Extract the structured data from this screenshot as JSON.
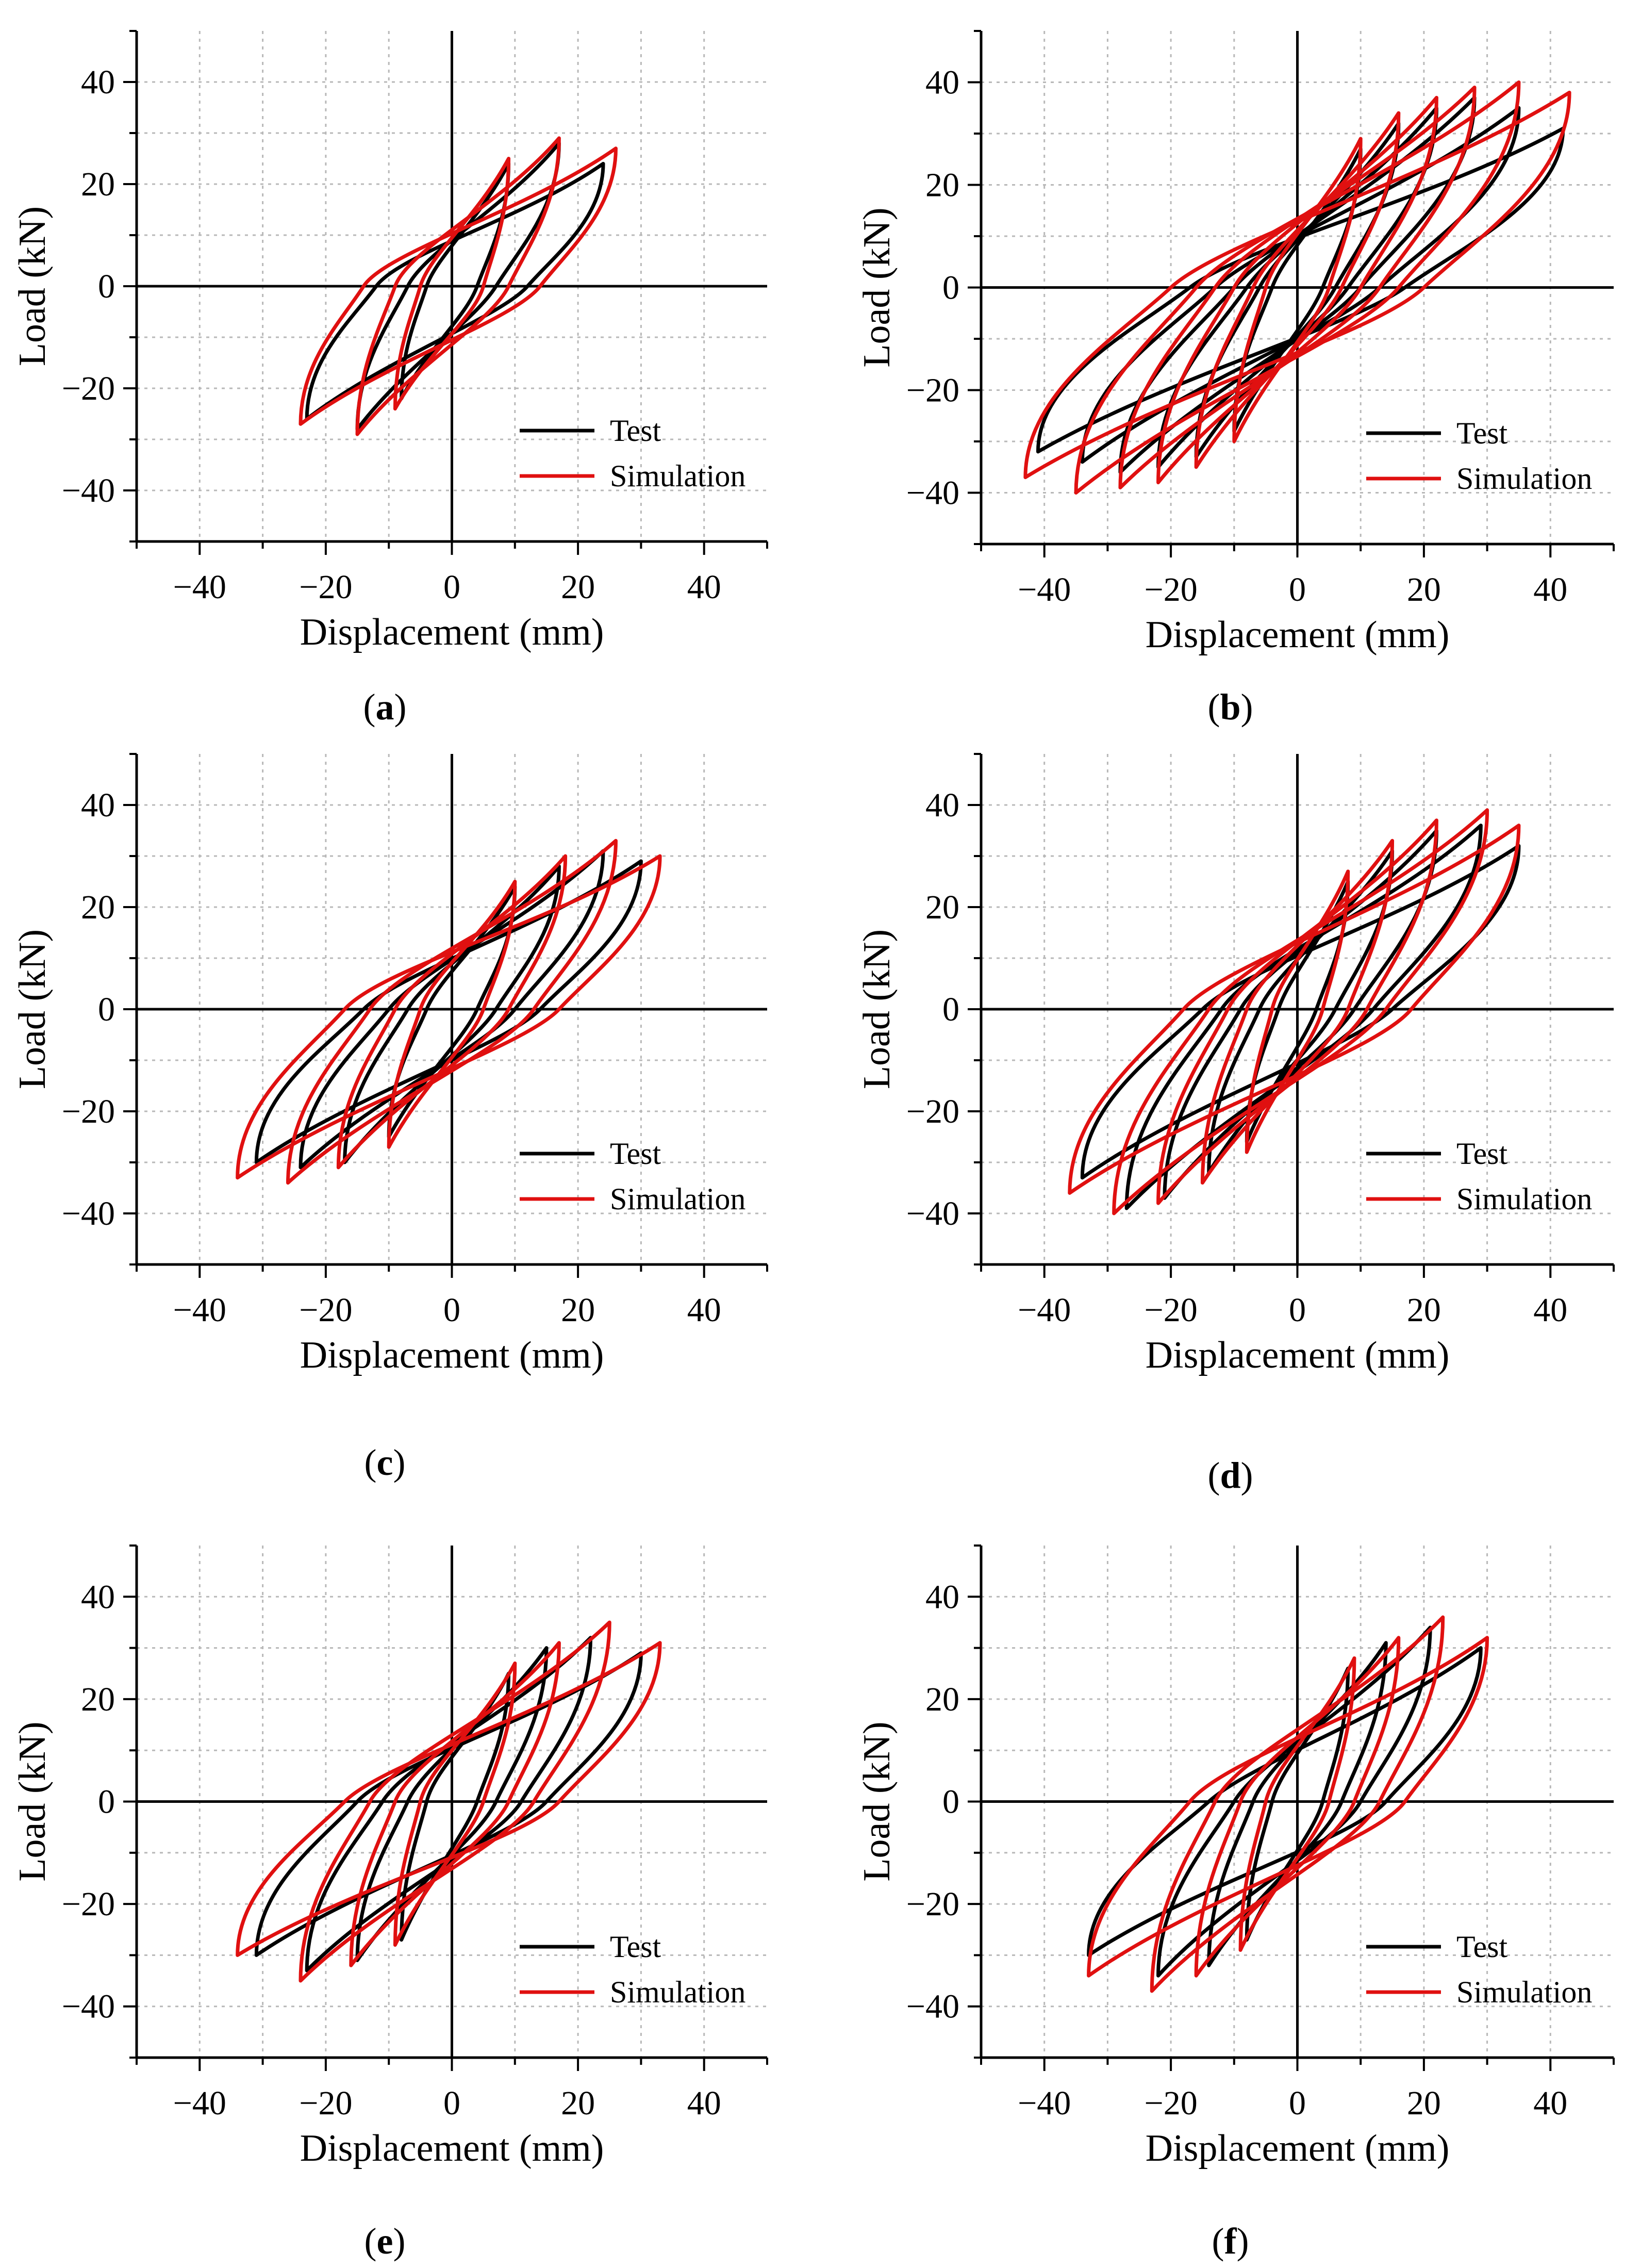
{
  "colors": {
    "test": "#000000",
    "simulation": "#e01010",
    "grid": "#b8b8b8",
    "axis": "#000000"
  },
  "common": {
    "xlabel": "Displacement (mm)",
    "ylabel": "Load (kN)",
    "xlim": [
      -50,
      50
    ],
    "ylim": [
      -50,
      50
    ],
    "xticks": [
      -40,
      -20,
      0,
      20,
      40
    ],
    "yticks": [
      -40,
      -20,
      0,
      20,
      40
    ],
    "legend": [
      "Test",
      "Simulation"
    ]
  },
  "chart_data": [
    {
      "type": "line",
      "panel": "a",
      "caption_letter": "a",
      "title": "",
      "xlabel": "Displacement (mm)",
      "ylabel": "Load (kN)",
      "xlim": [
        -50,
        50
      ],
      "ylim": [
        -50,
        50
      ],
      "legend_position": "bottom-right",
      "loops": {
        "Test": [
          {
            "max": [
              9,
              24
            ],
            "min": [
              -8,
              -22
            ],
            "ri": 4,
            "li": -4
          },
          {
            "max": [
              17,
              28
            ],
            "min": [
              -15,
              -28
            ],
            "ri": 7,
            "li": -7
          },
          {
            "max": [
              24,
              24
            ],
            "min": [
              -23,
              -26
            ],
            "ri": 12,
            "li": -12
          }
        ],
        "Simulation": [
          {
            "max": [
              9,
              25
            ],
            "min": [
              -9,
              -24
            ],
            "ri": 5,
            "li": -5
          },
          {
            "max": [
              17,
              29
            ],
            "min": [
              -15,
              -29
            ],
            "ri": 9,
            "li": -9
          },
          {
            "max": [
              26,
              27
            ],
            "min": [
              -24,
              -27
            ],
            "ri": 14,
            "li": -14
          }
        ]
      }
    },
    {
      "type": "line",
      "panel": "b",
      "caption_letter": "b",
      "title": "",
      "xlabel": "Displacement (mm)",
      "ylabel": "Load (kN)",
      "xlim": [
        -50,
        50
      ],
      "ylim": [
        -50,
        50
      ],
      "legend_position": "bottom-right",
      "loops": {
        "Test": [
          {
            "max": [
              10,
              27
            ],
            "min": [
              -10,
              -28
            ],
            "ri": 4,
            "li": -4
          },
          {
            "max": [
              16,
              32
            ],
            "min": [
              -16,
              -33
            ],
            "ri": 6,
            "li": -6
          },
          {
            "max": [
              22,
              35
            ],
            "min": [
              -22,
              -35
            ],
            "ri": 8,
            "li": -8
          },
          {
            "max": [
              28,
              37
            ],
            "min": [
              -28,
              -36
            ],
            "ri": 10,
            "li": -10
          },
          {
            "max": [
              35,
              35
            ],
            "min": [
              -34,
              -34
            ],
            "ri": 13,
            "li": -13
          },
          {
            "max": [
              42,
              31
            ],
            "min": [
              -41,
              -32
            ],
            "ri": 17,
            "li": -17
          }
        ],
        "Simulation": [
          {
            "max": [
              10,
              29
            ],
            "min": [
              -10,
              -30
            ],
            "ri": 5,
            "li": -5
          },
          {
            "max": [
              16,
              34
            ],
            "min": [
              -16,
              -35
            ],
            "ri": 7,
            "li": -7
          },
          {
            "max": [
              22,
              37
            ],
            "min": [
              -22,
              -38
            ],
            "ri": 10,
            "li": -10
          },
          {
            "max": [
              28,
              39
            ],
            "min": [
              -28,
              -39
            ],
            "ri": 13,
            "li": -13
          },
          {
            "max": [
              35,
              40
            ],
            "min": [
              -35,
              -40
            ],
            "ri": 16,
            "li": -16
          },
          {
            "max": [
              43,
              38
            ],
            "min": [
              -43,
              -37
            ],
            "ri": 20,
            "li": -20
          }
        ]
      }
    },
    {
      "type": "line",
      "panel": "c",
      "caption_letter": "c",
      "title": "",
      "xlabel": "Displacement (mm)",
      "ylabel": "Load (kN)",
      "xlim": [
        -50,
        50
      ],
      "ylim": [
        -50,
        50
      ],
      "legend_position": "bottom-right",
      "loops": {
        "Test": [
          {
            "max": [
              10,
              24
            ],
            "min": [
              -10,
              -25
            ],
            "ri": 4,
            "li": -4
          },
          {
            "max": [
              17,
              28
            ],
            "min": [
              -17,
              -30
            ],
            "ri": 7,
            "li": -7
          },
          {
            "max": [
              24,
              31
            ],
            "min": [
              -24,
              -31
            ],
            "ri": 10,
            "li": -10
          },
          {
            "max": [
              30,
              29
            ],
            "min": [
              -31,
              -30
            ],
            "ri": 14,
            "li": -14
          }
        ],
        "Simulation": [
          {
            "max": [
              10,
              25
            ],
            "min": [
              -10,
              -27
            ],
            "ri": 5,
            "li": -5
          },
          {
            "max": [
              18,
              30
            ],
            "min": [
              -18,
              -31
            ],
            "ri": 9,
            "li": -9
          },
          {
            "max": [
              26,
              33
            ],
            "min": [
              -26,
              -34
            ],
            "ri": 13,
            "li": -13
          },
          {
            "max": [
              33,
              30
            ],
            "min": [
              -34,
              -33
            ],
            "ri": 17,
            "li": -17
          }
        ]
      }
    },
    {
      "type": "line",
      "panel": "d",
      "caption_letter": "d",
      "title": "",
      "xlabel": "Displacement (mm)",
      "ylabel": "Load (kN)",
      "xlim": [
        -50,
        50
      ],
      "ylim": [
        -50,
        50
      ],
      "legend_position": "bottom-right",
      "loops": {
        "Test": [
          {
            "max": [
              8,
              25
            ],
            "min": [
              -8,
              -26
            ],
            "ri": 3,
            "li": -3
          },
          {
            "max": [
              15,
              31
            ],
            "min": [
              -14,
              -32
            ],
            "ri": 6,
            "li": -6
          },
          {
            "max": [
              22,
              35
            ],
            "min": [
              -21,
              -37
            ],
            "ri": 9,
            "li": -9
          },
          {
            "max": [
              29,
              36
            ],
            "min": [
              -27,
              -39
            ],
            "ri": 12,
            "li": -12
          },
          {
            "max": [
              35,
              32
            ],
            "min": [
              -34,
              -33
            ],
            "ri": 15,
            "li": -15
          }
        ],
        "Simulation": [
          {
            "max": [
              8,
              27
            ],
            "min": [
              -8,
              -28
            ],
            "ri": 4,
            "li": -4
          },
          {
            "max": [
              15,
              33
            ],
            "min": [
              -15,
              -34
            ],
            "ri": 8,
            "li": -8
          },
          {
            "max": [
              22,
              37
            ],
            "min": [
              -22,
              -38
            ],
            "ri": 11,
            "li": -11
          },
          {
            "max": [
              30,
              39
            ],
            "min": [
              -29,
              -40
            ],
            "ri": 14,
            "li": -14
          },
          {
            "max": [
              35,
              36
            ],
            "min": [
              -36,
              -36
            ],
            "ri": 18,
            "li": -18
          }
        ]
      }
    },
    {
      "type": "line",
      "panel": "e",
      "caption_letter": "e",
      "title": "",
      "xlabel": "Displacement (mm)",
      "ylabel": "Load (kN)",
      "xlim": [
        -50,
        50
      ],
      "ylim": [
        -50,
        50
      ],
      "legend_position": "bottom-right",
      "loops": {
        "Test": [
          {
            "max": [
              9,
              25
            ],
            "min": [
              -8,
              -27
            ],
            "ri": 4,
            "li": -4
          },
          {
            "max": [
              15,
              30
            ],
            "min": [
              -15,
              -31
            ],
            "ri": 7,
            "li": -7
          },
          {
            "max": [
              22,
              32
            ],
            "min": [
              -23,
              -33
            ],
            "ri": 11,
            "li": -11
          },
          {
            "max": [
              30,
              29
            ],
            "min": [
              -31,
              -30
            ],
            "ri": 15,
            "li": -15
          }
        ],
        "Simulation": [
          {
            "max": [
              10,
              27
            ],
            "min": [
              -9,
              -28
            ],
            "ri": 5,
            "li": -5
          },
          {
            "max": [
              17,
              31
            ],
            "min": [
              -16,
              -32
            ],
            "ri": 9,
            "li": -9
          },
          {
            "max": [
              25,
              35
            ],
            "min": [
              -24,
              -35
            ],
            "ri": 13,
            "li": -13
          },
          {
            "max": [
              33,
              31
            ],
            "min": [
              -34,
              -30
            ],
            "ri": 17,
            "li": -17
          }
        ]
      }
    },
    {
      "type": "line",
      "panel": "f",
      "caption_letter": "f",
      "title": "",
      "xlabel": "Displacement (mm)",
      "ylabel": "Load (kN)",
      "xlim": [
        -50,
        50
      ],
      "ylim": [
        -50,
        50
      ],
      "legend_position": "bottom-right",
      "loops": {
        "Test": [
          {
            "max": [
              8,
              26
            ],
            "min": [
              -8,
              -27
            ],
            "ri": 4,
            "li": -4
          },
          {
            "max": [
              14,
              31
            ],
            "min": [
              -14,
              -32
            ],
            "ri": 7,
            "li": -7
          },
          {
            "max": [
              21,
              34
            ],
            "min": [
              -22,
              -34
            ],
            "ri": 10,
            "li": -10
          },
          {
            "max": [
              29,
              30
            ],
            "min": [
              -33,
              -30
            ],
            "ri": 14,
            "li": -14
          }
        ],
        "Simulation": [
          {
            "max": [
              9,
              28
            ],
            "min": [
              -9,
              -29
            ],
            "ri": 5,
            "li": -5
          },
          {
            "max": [
              16,
              32
            ],
            "min": [
              -16,
              -34
            ],
            "ri": 9,
            "li": -9
          },
          {
            "max": [
              23,
              36
            ],
            "min": [
              -23,
              -37
            ],
            "ri": 13,
            "li": -13
          },
          {
            "max": [
              30,
              32
            ],
            "min": [
              -33,
              -34
            ],
            "ri": 17,
            "li": -17
          }
        ]
      }
    }
  ]
}
